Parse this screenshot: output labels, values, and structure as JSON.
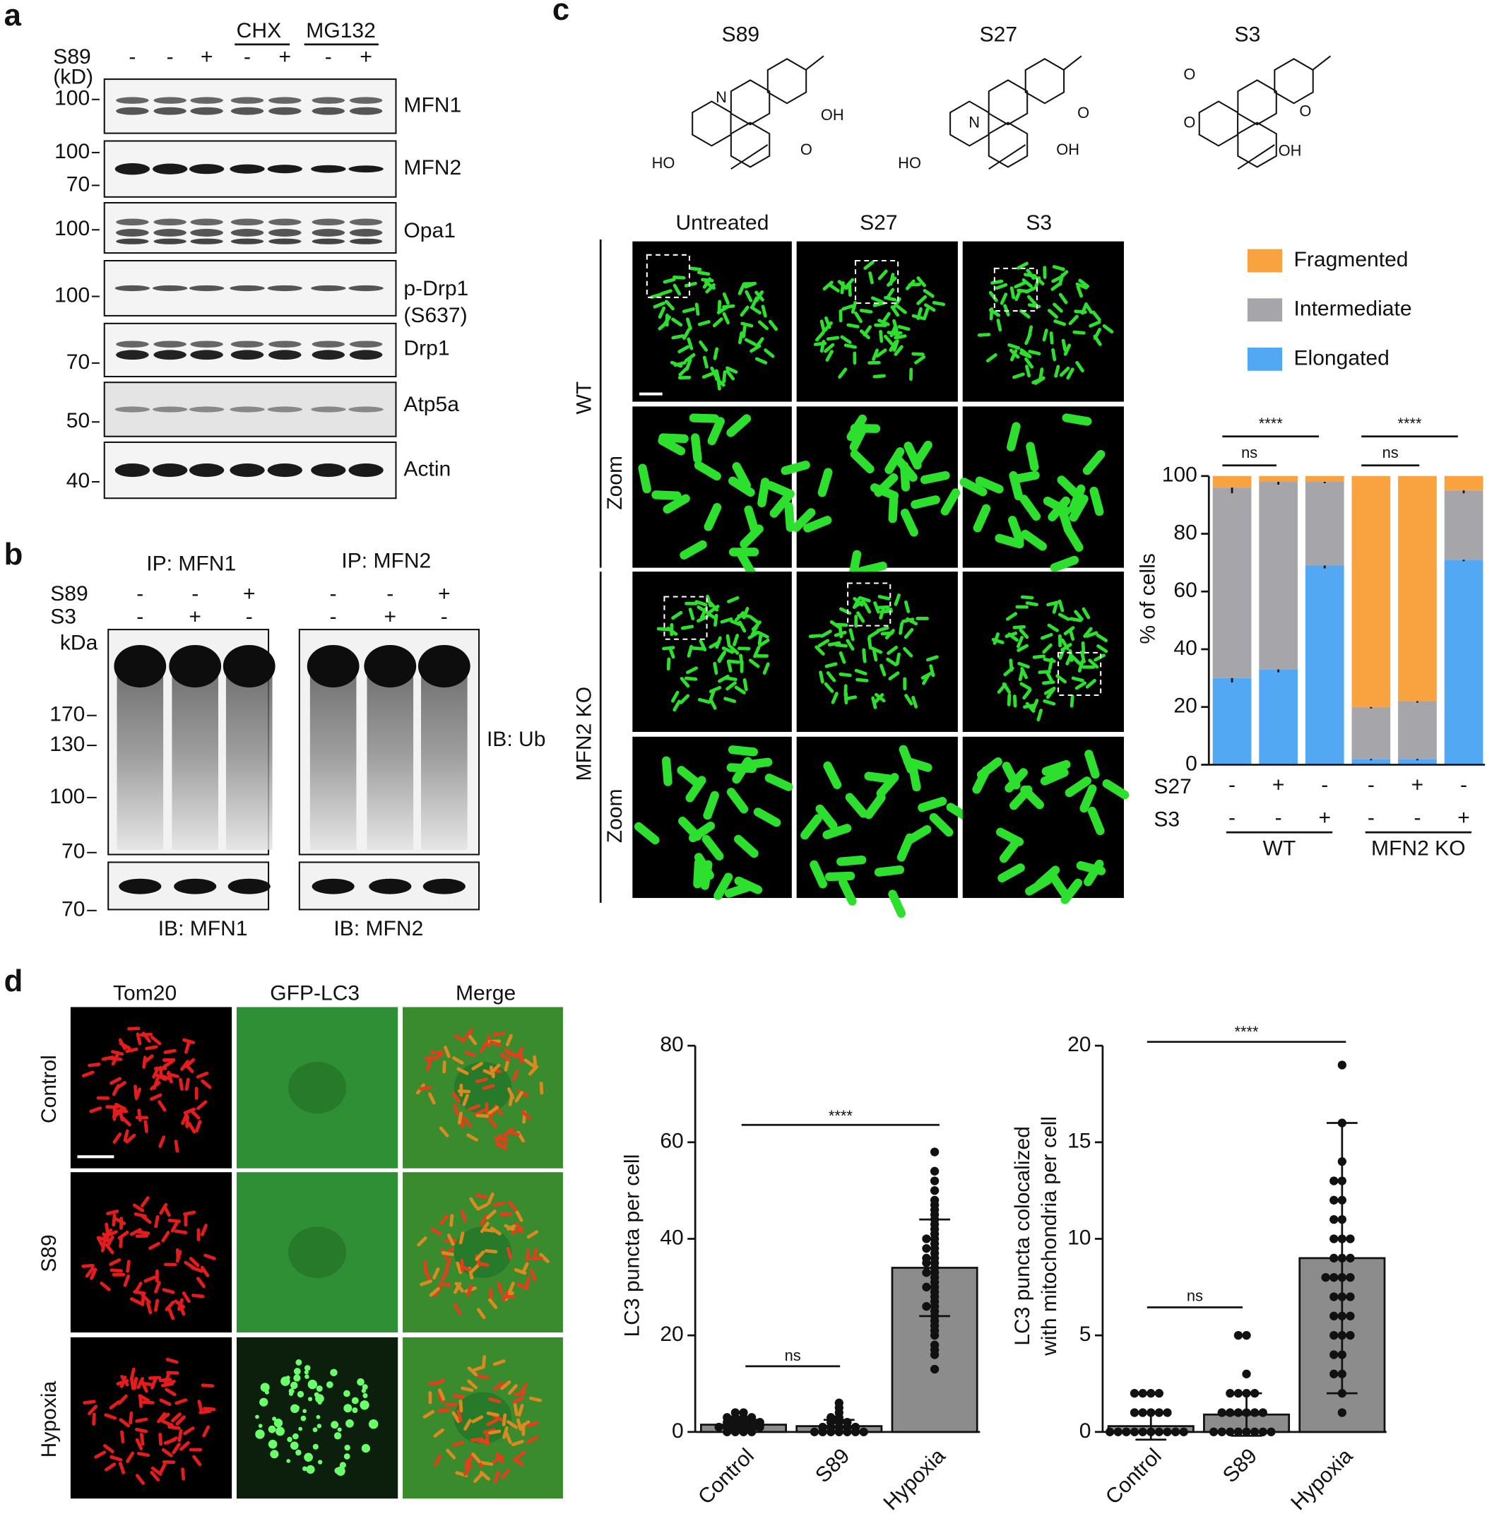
{
  "panel_labels": [
    "a",
    "b",
    "c",
    "d"
  ],
  "panel_a": {
    "header": [
      "CHX",
      "MG132"
    ],
    "row_label": "S89",
    "unit": "(kD)",
    "signs": [
      "-",
      "-",
      "+",
      "-",
      "+",
      "-",
      "+"
    ],
    "blots": [
      {
        "label": "MFN1",
        "markers": [
          100
        ]
      },
      {
        "label": "MFN2",
        "markers": [
          100,
          70
        ]
      },
      {
        "label": "Opa1",
        "markers": [
          100
        ]
      },
      {
        "label": "p-Drp1",
        "sublabel": "(S637)",
        "markers": [
          100
        ]
      },
      {
        "label": "Drp1",
        "markers": [
          70
        ]
      },
      {
        "label": "Atp5a",
        "markers": [
          50
        ]
      },
      {
        "label": "Actin",
        "markers": [
          40
        ]
      }
    ]
  },
  "panel_b": {
    "ip": [
      "IP: MFN1",
      "IP: MFN2"
    ],
    "rows": [
      {
        "label": "S89",
        "signs": [
          [
            "-",
            "-",
            "+"
          ],
          [
            "-",
            "-",
            "+"
          ]
        ]
      },
      {
        "label": "S3",
        "signs": [
          [
            "-",
            "+",
            "-"
          ],
          [
            "-",
            "+",
            "-"
          ]
        ]
      }
    ],
    "unit": "kDa",
    "markers": [
      170,
      130,
      100,
      70
    ],
    "lower_marker": 70,
    "ib_right": "IB: Ub",
    "ib_bottom": [
      "IB: MFN1",
      "IB: MFN2"
    ]
  },
  "panel_c": {
    "compounds": [
      {
        "name": "S89",
        "atoms": [
          "N",
          "OH",
          "O",
          "HO"
        ]
      },
      {
        "name": "S27",
        "atoms": [
          "N",
          "O",
          "OH",
          "HO"
        ]
      },
      {
        "name": "S3",
        "atoms": [
          "O",
          "O",
          "O",
          "OH"
        ]
      }
    ],
    "columns": [
      "Untreated",
      "S27",
      "S3"
    ],
    "rows": [
      "WT",
      "Zoom",
      "MFN2 KO",
      "Zoom"
    ]
  },
  "panel_d": {
    "columns": [
      "Tom20",
      "GFP-LC3",
      "Merge"
    ],
    "rows": [
      "Control",
      "S89",
      "Hypoxia"
    ]
  },
  "chart_data": [
    {
      "type": "bar",
      "stacked": true,
      "ylabel": "% of cells",
      "categories": [
        null,
        null,
        null,
        null,
        null,
        null
      ],
      "series": [
        {
          "name": "Elongated",
          "color": "#53a8f4",
          "values": [
            30,
            33,
            69,
            2,
            2,
            71
          ],
          "errors": [
            1.5,
            1,
            1,
            0.5,
            0.5,
            0.5
          ]
        },
        {
          "name": "Intermediate",
          "color": "#a5a5aa",
          "values": [
            66,
            65,
            29,
            18,
            20,
            24
          ],
          "errors": [
            2,
            1,
            0.5,
            0.5,
            0.5,
            1
          ]
        },
        {
          "name": "Fragmented",
          "color": "#f8a240",
          "values": [
            4,
            2,
            2,
            80,
            78,
            5
          ]
        }
      ],
      "treatments": [
        {
          "name": "S27",
          "signs": [
            "-",
            "+",
            "-",
            "-",
            "+",
            "-"
          ]
        },
        {
          "name": "S3",
          "signs": [
            "-",
            "-",
            "+",
            "-",
            "-",
            "+"
          ]
        }
      ],
      "groups": [
        "WT",
        "MFN2 KO"
      ],
      "annotations": [
        "****",
        "ns",
        "****",
        "ns"
      ],
      "ylim": [
        0,
        100
      ],
      "yticks": [
        0,
        20,
        40,
        60,
        80,
        100
      ]
    },
    {
      "type": "bar",
      "ylabel": [
        "LC3 puncta per cell"
      ],
      "color": "#8c8c8c",
      "categories": [
        "Control",
        "S89",
        "Hypoxia"
      ],
      "values": [
        1.5,
        1.2,
        34
      ],
      "errors": [
        1,
        1.3,
        10
      ],
      "points": [
        [
          0,
          0,
          0,
          0,
          1,
          1,
          1,
          1,
          1,
          1,
          2,
          2,
          2,
          2,
          2,
          3,
          3,
          3,
          3,
          4,
          4
        ],
        [
          0,
          0,
          0,
          0,
          0,
          0,
          0,
          1,
          1,
          1,
          1,
          1,
          2,
          2,
          2,
          3,
          3,
          4,
          5,
          6
        ],
        [
          13,
          16,
          17,
          18,
          20,
          21,
          22,
          23,
          24,
          25,
          26,
          26,
          27,
          28,
          29,
          30,
          30,
          31,
          32,
          33,
          33,
          34,
          35,
          35,
          36,
          36,
          37,
          38,
          38,
          39,
          40,
          40,
          41,
          42,
          43,
          44,
          45,
          46,
          47,
          48,
          50,
          52,
          54,
          58
        ]
      ],
      "annotations": [
        "****",
        "ns"
      ],
      "ylim": [
        0,
        80
      ],
      "yticks": [
        0,
        20,
        40,
        60,
        80
      ]
    },
    {
      "type": "bar",
      "ylabel": [
        "LC3 puncta colocalized",
        "with mitochondria per cell"
      ],
      "color": "#8c8c8c",
      "categories": [
        "Control",
        "S89",
        "Hypoxia"
      ],
      "values": [
        0.3,
        0.9,
        9
      ],
      "errors": [
        0.7,
        1.1,
        7
      ],
      "points": [
        [
          0,
          0,
          0,
          0,
          0,
          0,
          0,
          0,
          0,
          0,
          1,
          1,
          1,
          1,
          1,
          2,
          2,
          2,
          2
        ],
        [
          0,
          0,
          0,
          0,
          0,
          0,
          0,
          0,
          1,
          1,
          1,
          1,
          1,
          1,
          2,
          2,
          2,
          2,
          3,
          5,
          5
        ],
        [
          1,
          2,
          3,
          3,
          4,
          4,
          5,
          5,
          5,
          6,
          6,
          6,
          7,
          7,
          7,
          8,
          8,
          8,
          8,
          9,
          9,
          9,
          10,
          10,
          10,
          11,
          11,
          12,
          12,
          13,
          13,
          14,
          16,
          19
        ]
      ],
      "annotations": [
        "****",
        "ns"
      ],
      "ylim": [
        0,
        20
      ],
      "yticks": [
        0,
        5,
        10,
        15,
        20
      ]
    }
  ]
}
